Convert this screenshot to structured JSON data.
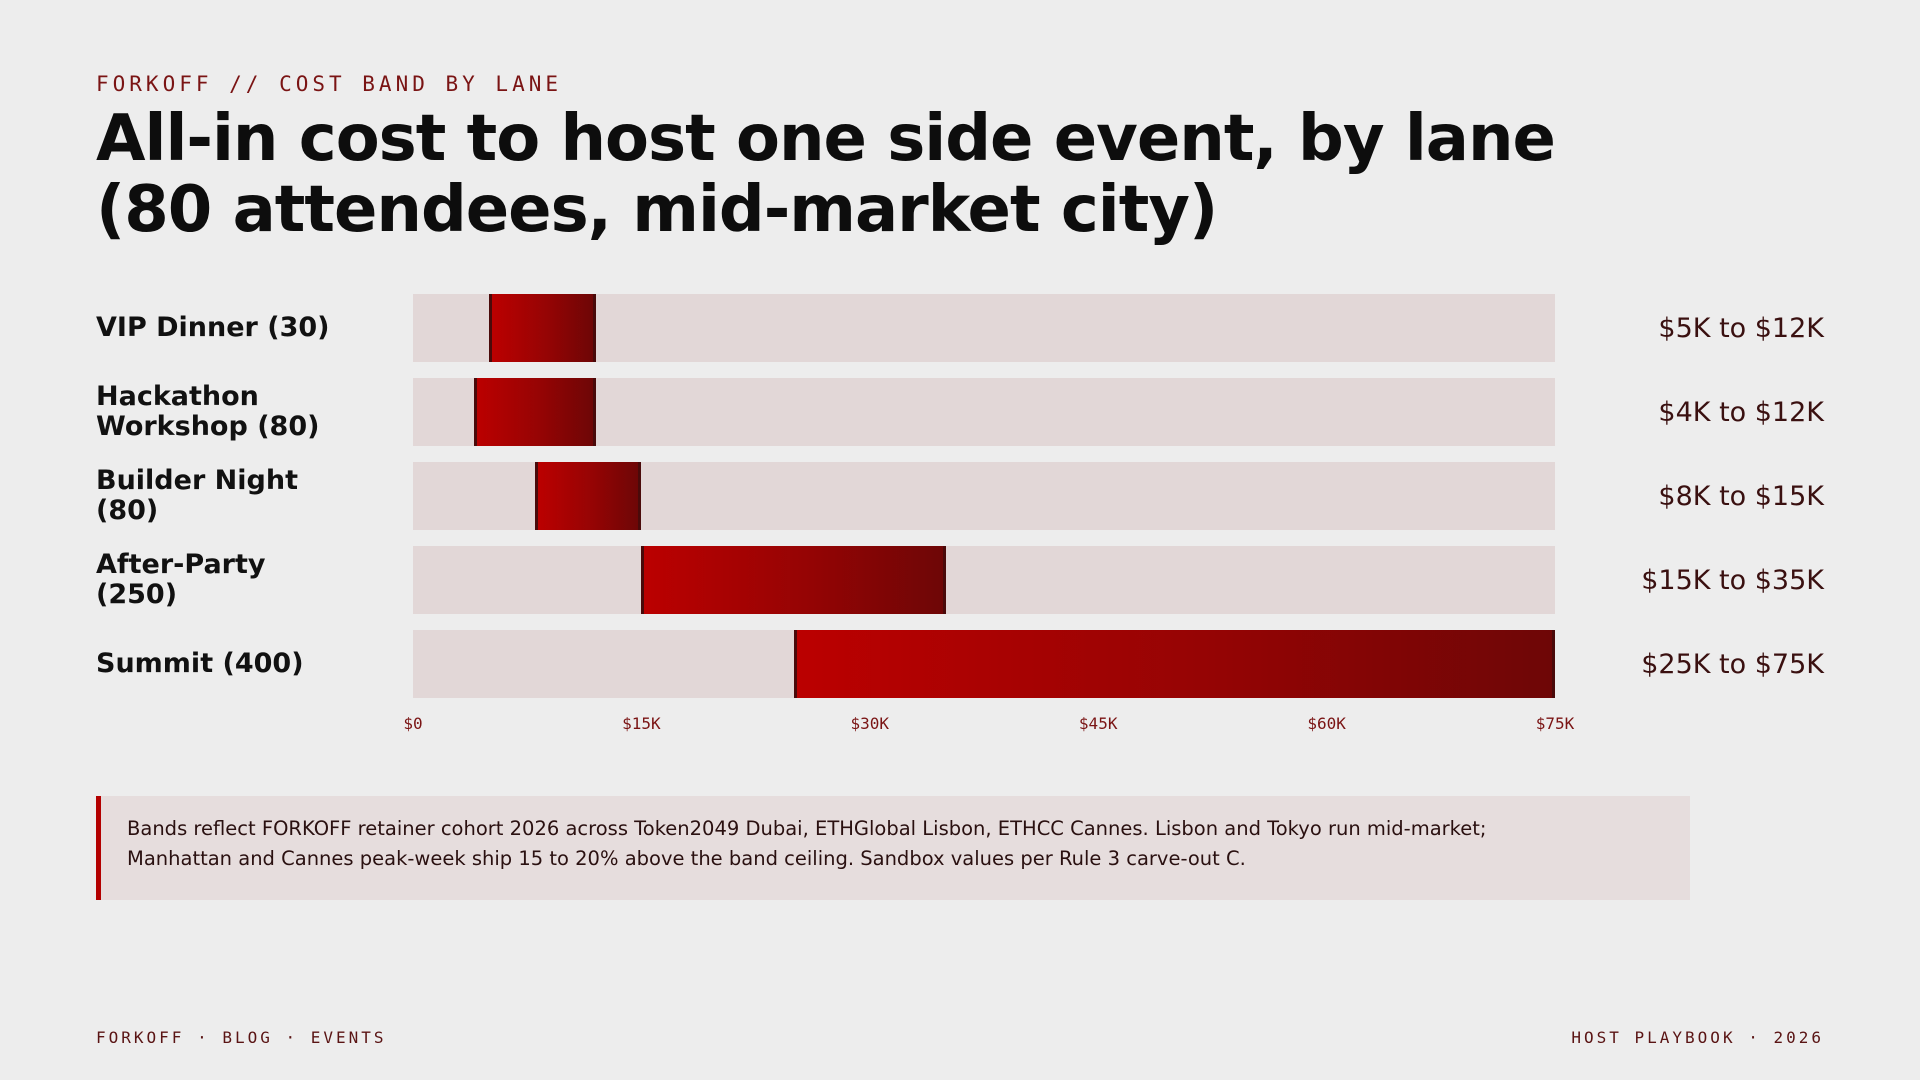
{
  "kicker": "FORKOFF // COST BAND BY LANE",
  "title": {
    "line1": "All-in cost to host one side event, by lane",
    "line2": "(80 attendees, mid-market city)"
  },
  "colors": {
    "band_start": "#bb0000",
    "band_end": "#6e0606",
    "track": "#e2d7d7",
    "accent": "#b30000"
  },
  "chart_data": {
    "type": "bar",
    "orientation": "horizontal",
    "subtype": "range",
    "xlim": [
      0,
      75000
    ],
    "x_ticks": [
      "$0",
      "$15K",
      "$30K",
      "$45K",
      "$60K",
      "$75K"
    ],
    "x_tick_values": [
      0,
      15000,
      30000,
      45000,
      60000,
      75000
    ],
    "rows": [
      {
        "label_lines": [
          "VIP Dinner (30)"
        ],
        "low": 5000,
        "high": 12000,
        "range_label": "$5K to $12K"
      },
      {
        "label_lines": [
          "Hackathon",
          "Workshop (80)"
        ],
        "low": 4000,
        "high": 12000,
        "range_label": "$4K to $12K"
      },
      {
        "label_lines": [
          "Builder Night",
          "(80)"
        ],
        "low": 8000,
        "high": 15000,
        "range_label": "$8K to $15K"
      },
      {
        "label_lines": [
          "After-Party",
          "(250)"
        ],
        "low": 15000,
        "high": 35000,
        "range_label": "$15K to $35K"
      },
      {
        "label_lines": [
          "Summit (400)"
        ],
        "low": 25000,
        "high": 75000,
        "range_label": "$25K to $75K"
      }
    ]
  },
  "note": {
    "line1": "Bands reflect FORKOFF retainer cohort 2026 across Token2049 Dubai, ETHGlobal Lisbon, ETHCC Cannes. Lisbon and Tokyo run mid-market;",
    "line2": "Manhattan and Cannes peak-week ship 15 to 20% above the band ceiling. Sandbox values per Rule 3 carve-out C."
  },
  "footer": {
    "left": "FORKOFF · BLOG · EVENTS",
    "right": "HOST PLAYBOOK · 2026"
  }
}
